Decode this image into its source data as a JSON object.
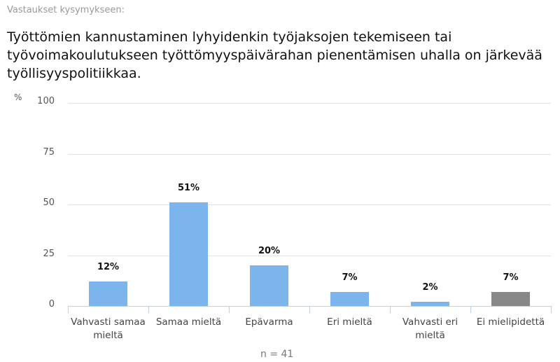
{
  "header": {
    "subtitle": "Vastaukset kysymykseen:",
    "title": "Työttömien kannustaminen lyhyidenkin työjaksojen tekemiseen tai työvoimakoulutukseen työttömyyspäivärahan pienentämisen uhalla on järkevää työllisyyspolitiikkaa."
  },
  "footer": {
    "n_label": "n = 41"
  },
  "colors": {
    "bar": "#7cb5ec",
    "no_opinion": "#888888"
  },
  "chart_data": {
    "type": "bar",
    "title": "Työttömien kannustaminen lyhyidenkin työjaksojen tekemiseen tai työvoimakoulutukseen työttömyyspäivärahan pienentämisen uhalla on järkevää työllisyyspolitiikkaa.",
    "subtitle": "Vastaukset kysymykseen:",
    "ylabel": "%",
    "xlabel": "",
    "ylim": [
      0,
      100
    ],
    "yticks": [
      "0",
      "25",
      "50",
      "75",
      "100"
    ],
    "grid": true,
    "legend": null,
    "categories": [
      "Vahvasti samaa mieltä",
      "Samaa mieltä",
      "Epävarma",
      "Eri mieltä",
      "Vahvasti eri mieltä",
      "Ei mielipidettä"
    ],
    "values": [
      12,
      51,
      20,
      7,
      2,
      7
    ],
    "data_labels": [
      "12%",
      "51%",
      "20%",
      "7%",
      "2%",
      "7%"
    ],
    "bar_colors": [
      "#7cb5ec",
      "#7cb5ec",
      "#7cb5ec",
      "#7cb5ec",
      "#7cb5ec",
      "#888888"
    ],
    "annotation": "n = 41"
  }
}
